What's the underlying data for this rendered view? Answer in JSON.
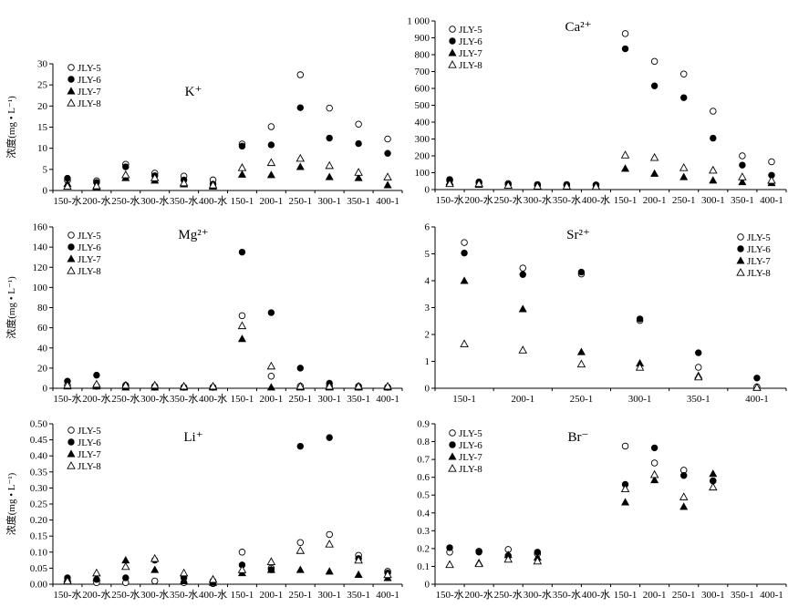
{
  "series_names": [
    "JLY-5",
    "JLY-6",
    "JLY-7",
    "JLY-8"
  ],
  "ylabel": "浓度(mg • L⁻¹)",
  "chart_data": [
    {
      "type": "scatter",
      "title": "K⁺",
      "ylabel": "浓度(mg • L⁻¹)",
      "categories": [
        "150-水",
        "200-水",
        "250-水",
        "300-水",
        "350-水",
        "400-水",
        "150-1",
        "200-1",
        "250-1",
        "300-1",
        "350-1",
        "400-1"
      ],
      "ylim": [
        0,
        30
      ],
      "yticks": [
        0,
        5,
        10,
        15,
        20,
        25,
        30
      ],
      "legend_position": "top-left",
      "series": [
        {
          "name": "JLY-5",
          "values": [
            2.4,
            2.3,
            6.2,
            4.1,
            3.4,
            2.5,
            11.0,
            15.1,
            27.4,
            19.5,
            15.7,
            12.2
          ]
        },
        {
          "name": "JLY-6",
          "values": [
            2.9,
            1.9,
            5.6,
            3.5,
            2.5,
            1.5,
            10.5,
            10.8,
            19.6,
            12.4,
            11.1,
            8.8
          ]
        },
        {
          "name": "JLY-7",
          "values": [
            1.6,
            0.8,
            3.0,
            2.4,
            1.5,
            1.0,
            3.8,
            3.7,
            5.6,
            3.2,
            3.0,
            1.3
          ]
        },
        {
          "name": "JLY-8",
          "values": [
            1.0,
            1.1,
            3.7,
            3.0,
            1.8,
            1.3,
            5.4,
            6.6,
            7.6,
            5.9,
            4.3,
            3.2
          ]
        }
      ]
    },
    {
      "type": "scatter",
      "title": "Ca²⁺",
      "ylabel": "",
      "categories": [
        "150-水",
        "200-水",
        "250-水",
        "300-水",
        "350-水",
        "400-水",
        "150-1",
        "200-1",
        "250-1",
        "300-1",
        "350-1",
        "400-1"
      ],
      "ylim": [
        0,
        1000
      ],
      "yticks": [
        0,
        100,
        200,
        300,
        400,
        500,
        600,
        700,
        800,
        900,
        1000
      ],
      "ytick_labels": [
        "0",
        "100",
        "200",
        "300",
        "400",
        "500",
        "600",
        "700",
        "800",
        "900",
        "1 000"
      ],
      "legend_position": "top-left",
      "series": [
        {
          "name": "JLY-5",
          "values": [
            55,
            45,
            36,
            30,
            30,
            28,
            925,
            760,
            685,
            465,
            200,
            165
          ]
        },
        {
          "name": "JLY-6",
          "values": [
            60,
            40,
            30,
            25,
            25,
            25,
            835,
            615,
            545,
            305,
            145,
            85
          ]
        },
        {
          "name": "JLY-7",
          "values": [
            45,
            30,
            25,
            20,
            20,
            20,
            125,
            95,
            75,
            55,
            45,
            40
          ]
        },
        {
          "name": "JLY-8",
          "values": [
            35,
            35,
            25,
            20,
            20,
            18,
            205,
            190,
            130,
            115,
            75,
            55
          ]
        }
      ]
    },
    {
      "type": "scatter",
      "title": "Mg²⁺",
      "ylabel": "浓度(mg • L⁻¹)",
      "categories": [
        "150-水",
        "200-水",
        "250-水",
        "300-水",
        "350-水",
        "400-水",
        "150-1",
        "200-1",
        "250-1",
        "300-1",
        "350-1",
        "400-1"
      ],
      "ylim": [
        0,
        160
      ],
      "yticks": [
        0,
        20,
        40,
        60,
        80,
        100,
        120,
        140,
        160
      ],
      "legend_position": "top-left",
      "series": [
        {
          "name": "JLY-5",
          "values": [
            3,
            2,
            2,
            1,
            1,
            1,
            72,
            12,
            2,
            2,
            1,
            1
          ]
        },
        {
          "name": "JLY-6",
          "values": [
            7,
            13,
            3,
            2,
            1,
            1,
            135,
            75,
            20,
            5,
            2,
            1
          ]
        },
        {
          "name": "JLY-7",
          "values": [
            2,
            2,
            1,
            1,
            1,
            1,
            49,
            1,
            1,
            1,
            1,
            1
          ]
        },
        {
          "name": "JLY-8",
          "values": [
            3,
            4,
            3,
            3,
            2,
            2,
            62,
            22,
            2,
            2,
            2,
            2
          ]
        }
      ]
    },
    {
      "type": "scatter",
      "title": "Sr²⁺",
      "ylabel": "",
      "categories": [
        "150-1",
        "200-1",
        "250-1",
        "300-1",
        "350-1",
        "400-1"
      ],
      "ylim": [
        0,
        6
      ],
      "yticks": [
        0,
        1,
        2,
        3,
        4,
        5,
        6
      ],
      "legend_position": "top-right",
      "series": [
        {
          "name": "JLY-5",
          "values": [
            5.42,
            4.47,
            4.25,
            2.52,
            0.78,
            0.05
          ]
        },
        {
          "name": "JLY-6",
          "values": [
            5.03,
            4.23,
            4.32,
            2.58,
            1.32,
            0.38
          ]
        },
        {
          "name": "JLY-7",
          "values": [
            4.0,
            2.95,
            1.35,
            0.93,
            0.47,
            0.03
          ]
        },
        {
          "name": "JLY-8",
          "values": [
            1.65,
            1.42,
            0.9,
            0.78,
            0.42,
            0.03
          ]
        }
      ]
    },
    {
      "type": "scatter",
      "title": "Li⁺",
      "ylabel": "浓度(mg • L⁻¹)",
      "categories": [
        "150-水",
        "200-水",
        "250-水",
        "300-水",
        "350-水",
        "400-水",
        "150-1",
        "200-1",
        "250-1",
        "300-1",
        "350-1",
        "400-1"
      ],
      "ylim": [
        0,
        0.5
      ],
      "yticks": [
        0,
        0.05,
        0.1,
        0.15,
        0.2,
        0.25,
        0.3,
        0.35,
        0.4,
        0.45,
        0.5
      ],
      "ytick_labels": [
        "0.00",
        "0.05",
        "0.10",
        "0.15",
        "0.20",
        "0.25",
        "0.30",
        "0.35",
        "0.40",
        "0.45",
        "0.50"
      ],
      "legend_position": "top-left",
      "series": [
        {
          "name": "JLY-5",
          "values": [
            0.01,
            0.005,
            0.005,
            0.01,
            0.005,
            0.002,
            0.1,
            0.05,
            0.13,
            0.155,
            0.09,
            0.04
          ]
        },
        {
          "name": "JLY-6",
          "values": [
            0.02,
            0.015,
            0.02,
            0.075,
            0.02,
            0.01,
            0.06,
            0.045,
            0.43,
            0.457,
            0.08,
            0.035
          ]
        },
        {
          "name": "JLY-7",
          "values": [
            0.015,
            0.02,
            0.075,
            0.045,
            0.01,
            0.005,
            0.035,
            0.045,
            0.045,
            0.04,
            0.03,
            0.02
          ]
        },
        {
          "name": "JLY-8",
          "values": [
            0.01,
            0.035,
            0.055,
            0.08,
            0.035,
            0.015,
            0.045,
            0.07,
            0.105,
            0.125,
            0.075,
            0.03
          ]
        }
      ]
    },
    {
      "type": "scatter",
      "title": "Br⁻",
      "ylabel": "",
      "categories": [
        "150-水",
        "200-水",
        "250-水",
        "300-水",
        "350-水",
        "400-水",
        "150-1",
        "200-1",
        "250-1",
        "300-1",
        "350-1",
        "400-1"
      ],
      "ylim": [
        0,
        0.9
      ],
      "yticks": [
        0,
        0.1,
        0.2,
        0.3,
        0.4,
        0.5,
        0.6,
        0.7,
        0.8,
        0.9
      ],
      "legend_position": "top-left",
      "series": [
        {
          "name": "JLY-5",
          "values": [
            0.18,
            0.185,
            0.195,
            0.17,
            null,
            null,
            0.775,
            0.68,
            0.64,
            0.58,
            null,
            null
          ]
        },
        {
          "name": "JLY-6",
          "values": [
            0.205,
            0.18,
            0.16,
            0.18,
            null,
            null,
            0.56,
            0.765,
            0.61,
            0.58,
            null,
            null
          ]
        },
        {
          "name": "JLY-7",
          "values": [
            0.11,
            0.12,
            0.165,
            0.15,
            null,
            null,
            0.46,
            0.585,
            0.435,
            0.62,
            null,
            null
          ]
        },
        {
          "name": "JLY-8",
          "values": [
            0.11,
            0.115,
            0.14,
            0.13,
            null,
            null,
            0.535,
            0.615,
            0.49,
            0.545,
            null,
            null
          ]
        }
      ]
    }
  ]
}
